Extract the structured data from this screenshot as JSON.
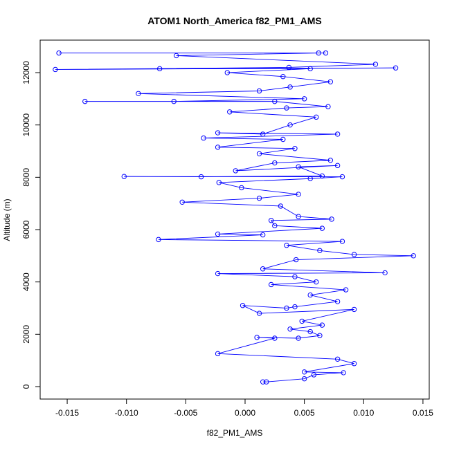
{
  "chart_data": {
    "type": "line",
    "title": "ATOM1 North_America f82_PM1_AMS",
    "x_label": "f82_PM1_AMS",
    "y_label": "Altitude (m)",
    "color": "#0000ff",
    "markers": true,
    "xlim": [
      -0.01728,
      0.01553
    ],
    "ylim": [
      -476,
      13243
    ],
    "xticks": [
      -0.015,
      {
        "value": -0.01,
        "label": "-0.010"
      },
      -0.005,
      {
        "value": 0,
        "label": "0.000"
      },
      0.005,
      {
        "value": 0.01,
        "label": "0.010"
      },
      0.015
    ],
    "yticks": [
      0,
      2000,
      4000,
      6000,
      8000,
      10000,
      12000
    ],
    "x": [
      0.0015,
      0.0018,
      0.005,
      0.0058,
      0.0083,
      0.005,
      0.0092,
      0.0078,
      -0.0023,
      0.0025,
      0.001,
      0.0045,
      0.0063,
      0.0055,
      0.0038,
      0.0065,
      0.0048,
      0.0092,
      0.0012,
      -0.0002,
      0.0035,
      0.0042,
      0.0078,
      0.0055,
      0.0085,
      0.0022,
      0.006,
      0.0042,
      -0.0023,
      0.0118,
      0.0015,
      0.0043,
      0.0142,
      0.0092,
      0.0063,
      0.0035,
      0.0082,
      -0.0073,
      0.0015,
      -0.0023,
      0.0065,
      0.0025,
      0.0022,
      0.0073,
      0.0045,
      0.003,
      -0.0053,
      0.0012,
      0.0045,
      -0.0003,
      -0.0022,
      0.0055,
      0.0082,
      -0.0102,
      -0.0037,
      0.0065,
      0.0045,
      0.0078,
      -0.0008,
      0.0025,
      0.0072,
      0.0012,
      0.0042,
      -0.0023,
      0.0032,
      -0.0035,
      0.0078,
      -0.0023,
      0.0015,
      0.0038,
      0.006,
      -0.0013,
      0.0035,
      0.007,
      0.0025,
      -0.0135,
      -0.006,
      0.005,
      -0.009,
      0.0012,
      0.0038,
      0.0072,
      0.0032,
      -0.0015,
      0.0055,
      -0.0072,
      0.0127,
      -0.016,
      0.0037,
      0.011,
      -0.0058,
      0.0062,
      -0.0157,
      0.0068
    ],
    "y": [
      180,
      180,
      300,
      450,
      530,
      560,
      880,
      1050,
      1260,
      1850,
      1880,
      1850,
      1950,
      2100,
      2200,
      2350,
      2500,
      2950,
      2800,
      3100,
      3000,
      3050,
      3250,
      3500,
      3700,
      3900,
      4000,
      4200,
      4320,
      4350,
      4500,
      4850,
      5000,
      5050,
      5200,
      5400,
      5550,
      5620,
      5800,
      5830,
      6050,
      6150,
      6350,
      6400,
      6500,
      6900,
      7050,
      7200,
      7350,
      7600,
      7800,
      7950,
      8020,
      8030,
      8020,
      8050,
      8400,
      8450,
      8250,
      8550,
      8650,
      8900,
      9100,
      9150,
      9450,
      9500,
      9650,
      9700,
      9650,
      10000,
      10300,
      10500,
      10650,
      10700,
      10900,
      10900,
      10900,
      11000,
      11200,
      11300,
      11450,
      11650,
      11850,
      12000,
      12150,
      12150,
      12180,
      12120,
      12200,
      12320,
      12650,
      12750,
      12750,
      12750
    ]
  }
}
